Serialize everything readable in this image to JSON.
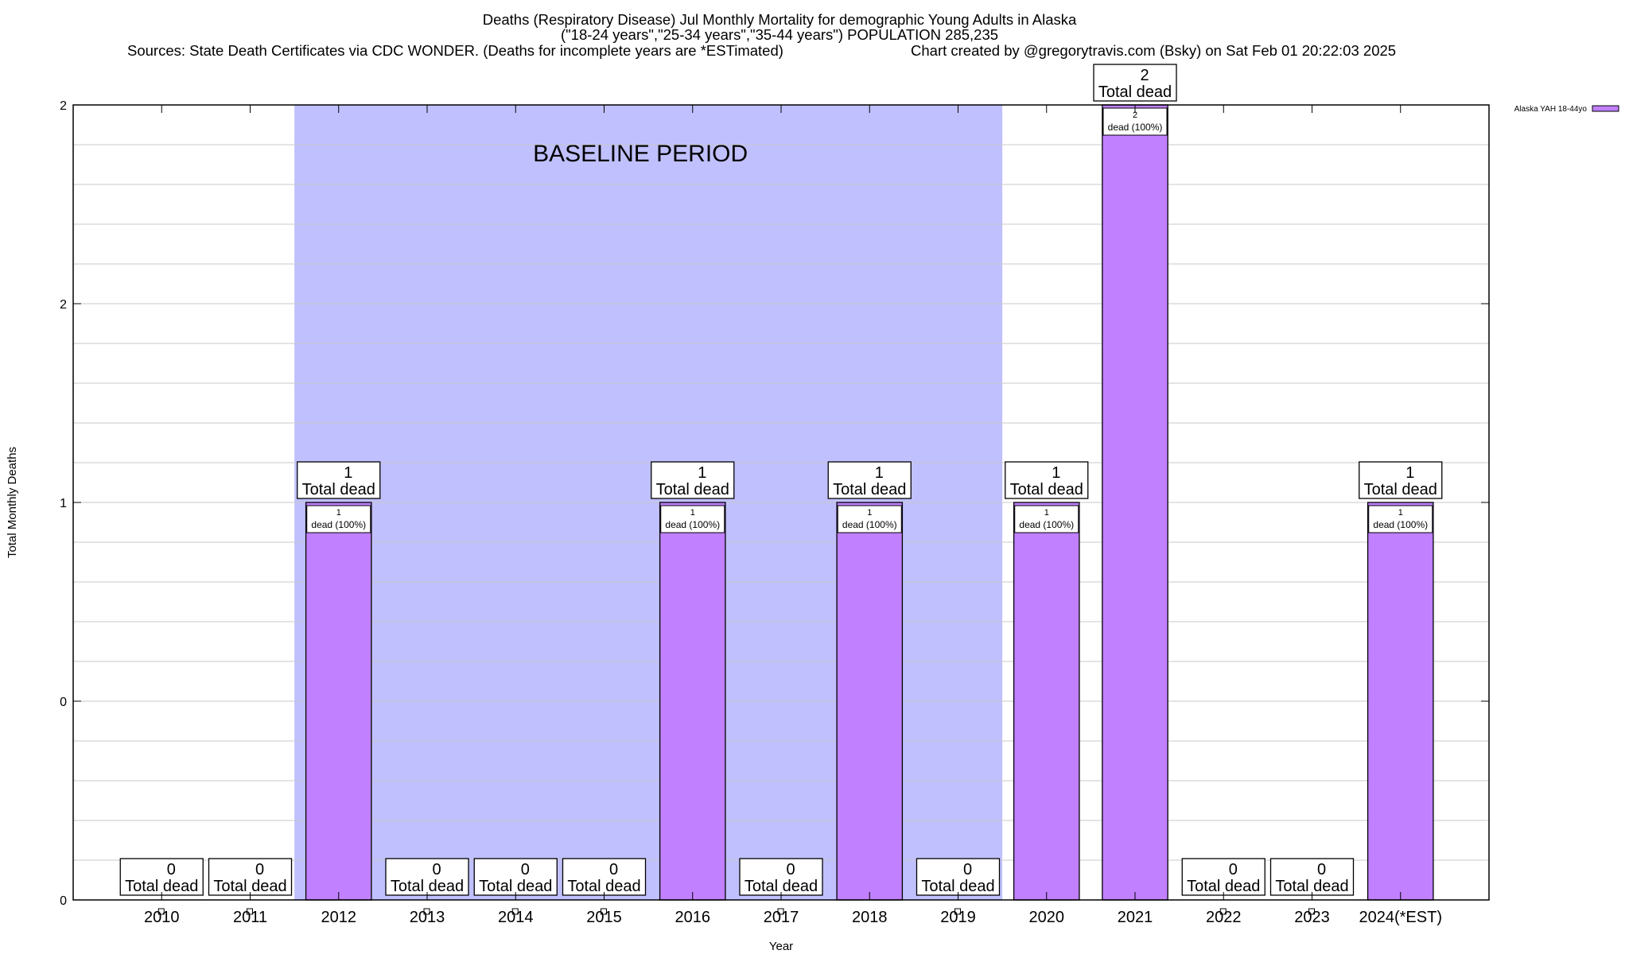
{
  "chart_data": {
    "type": "bar",
    "title_lines": [
      "Deaths (Respiratory Disease) Jul Monthly Mortality for demographic Young Adults in Alaska",
      "(\"18-24 years\",\"25-34 years\",\"35-44 years\") POPULATION 285,235"
    ],
    "sources": "Sources: State Death Certificates via CDC WONDER. (Deaths for incomplete years are *ESTimated)",
    "credit": "Chart created by @gregorytravis.com (Bsky) on Sat Feb 01 20:22:03 2025",
    "xlabel": "Year",
    "ylabel": "Total Monthly Deaths",
    "ylim": [
      0,
      2
    ],
    "yticks": [
      0,
      0.5,
      1,
      1.5,
      2
    ],
    "ytick_labels": [
      "0",
      "0",
      "1",
      "2",
      "2"
    ],
    "grid": true,
    "categories": [
      "2010",
      "2011",
      "2012",
      "2013",
      "2014",
      "2015",
      "2016",
      "2017",
      "2018",
      "2019",
      "2020",
      "2021",
      "2022",
      "2023",
      "2024(*EST)"
    ],
    "series": [
      {
        "name": "Alaska YAH 18-44yo",
        "color": "#c080ff",
        "values": [
          0,
          0,
          1,
          0,
          0,
          0,
          1,
          0,
          1,
          0,
          1,
          2,
          0,
          0,
          1
        ]
      }
    ],
    "total_label": "Total dead",
    "inner_label": "dead (100%)",
    "baseline": {
      "label": "BASELINE PERIOD",
      "from": "2012",
      "to": "2019",
      "color": "#c0c0ff"
    },
    "legend_position": "top-right"
  }
}
